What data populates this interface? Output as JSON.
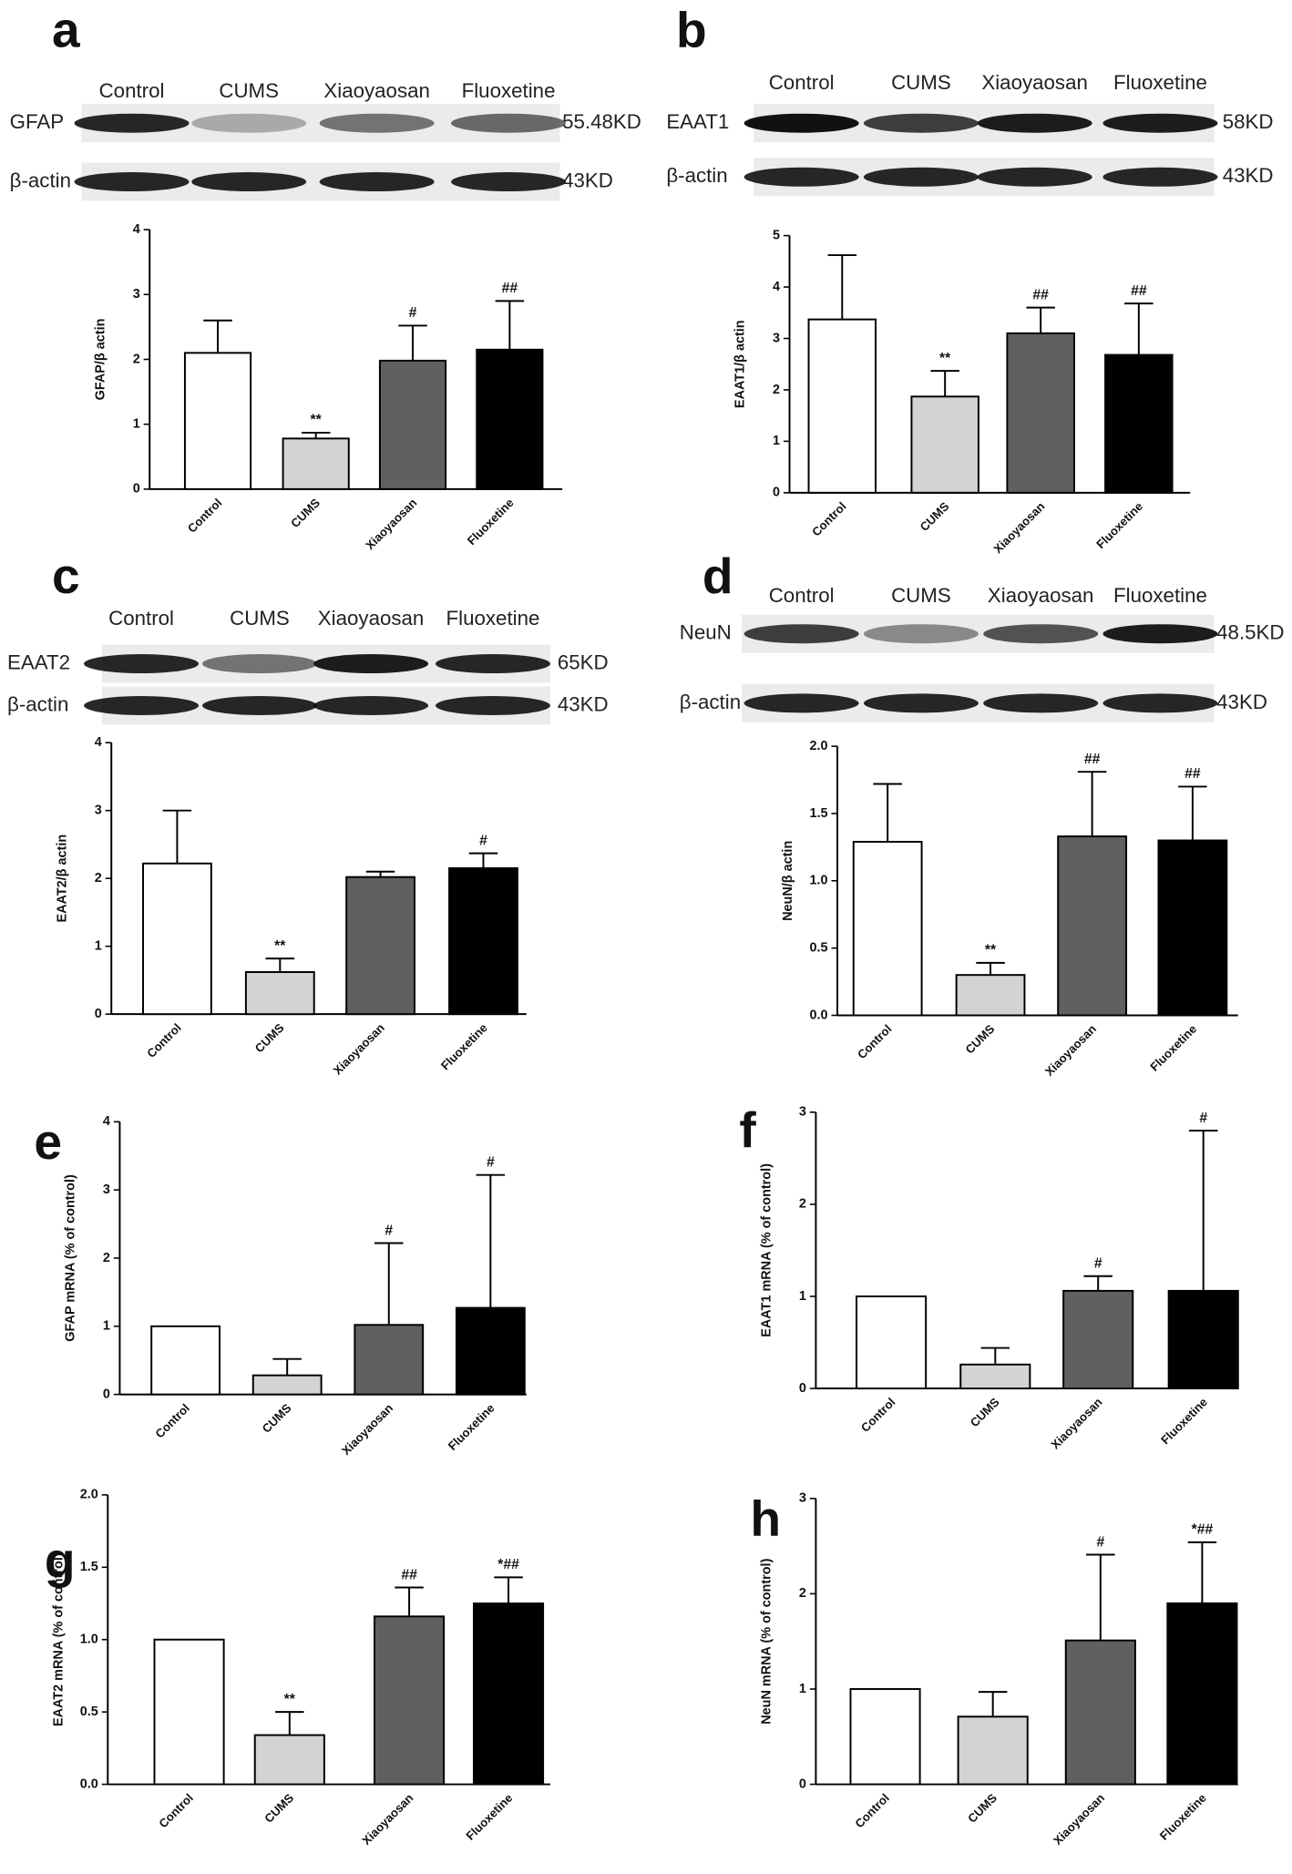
{
  "chart_data": [
    {
      "type": "bar",
      "panel": "a",
      "ylabel": "GFAP/β actin",
      "blot": {
        "lanes": [
          "Control",
          "CUMS",
          "Xiaoyaosan",
          "Fluoxetine"
        ],
        "rows": [
          {
            "name": "GFAP",
            "size": "55.48KD"
          },
          {
            "name": "β-actin",
            "size": "43KD"
          }
        ]
      },
      "categories": [
        "Control",
        "CUMS",
        "Xiaoyaosan",
        "Fluoxetine"
      ],
      "values": [
        2.1,
        0.78,
        1.98,
        2.15
      ],
      "errors": [
        0.5,
        0.09,
        0.54,
        0.75
      ],
      "annotations": [
        null,
        "**",
        "#",
        "##"
      ],
      "colors": [
        "#ffffff",
        "#d3d3d3",
        "#606060",
        "#000000"
      ],
      "ylim": [
        0,
        4
      ],
      "yticks": [
        0,
        1,
        2,
        3,
        4
      ]
    },
    {
      "type": "bar",
      "panel": "b",
      "ylabel": "EAAT1/β actin",
      "blot": {
        "lanes": [
          "Control",
          "CUMS",
          "Xiaoyaosan",
          "Fluoxetine"
        ],
        "rows": [
          {
            "name": "EAAT1",
            "size": "58KD"
          },
          {
            "name": "β-actin",
            "size": "43KD"
          }
        ]
      },
      "categories": [
        "Control",
        "CUMS",
        "Xiaoyaosan",
        "Fluoxetine"
      ],
      "values": [
        3.37,
        1.87,
        3.1,
        2.68
      ],
      "errors": [
        1.25,
        0.5,
        0.5,
        1.0
      ],
      "annotations": [
        null,
        "**",
        "##",
        "##"
      ],
      "colors": [
        "#ffffff",
        "#d3d3d3",
        "#606060",
        "#000000"
      ],
      "ylim": [
        0,
        5
      ],
      "yticks": [
        0,
        1,
        2,
        3,
        4,
        5
      ]
    },
    {
      "type": "bar",
      "panel": "c",
      "ylabel": "EAAT2/β actin",
      "blot": {
        "lanes": [
          "Control",
          "CUMS",
          "Xiaoyaosan",
          "Fluoxetine"
        ],
        "rows": [
          {
            "name": "EAAT2",
            "size": "65KD"
          },
          {
            "name": "β-actin",
            "size": "43KD"
          }
        ]
      },
      "categories": [
        "Control",
        "CUMS",
        "Xiaoyaosan",
        "Fluoxetine"
      ],
      "values": [
        2.22,
        0.62,
        2.02,
        2.15
      ],
      "errors": [
        0.78,
        0.2,
        0.08,
        0.22
      ],
      "annotations": [
        null,
        "**",
        null,
        "#"
      ],
      "colors": [
        "#ffffff",
        "#d3d3d3",
        "#606060",
        "#000000"
      ],
      "ylim": [
        0,
        4
      ],
      "yticks": [
        0,
        1,
        2,
        3,
        4
      ]
    },
    {
      "type": "bar",
      "panel": "d",
      "ylabel": "NeuN/β actin",
      "blot": {
        "lanes": [
          "Control",
          "CUMS",
          "Xiaoyaosan",
          "Fluoxetine"
        ],
        "rows": [
          {
            "name": "NeuN",
            "size": "48.5KD"
          },
          {
            "name": "β-actin",
            "size": "43KD"
          }
        ]
      },
      "categories": [
        "Control",
        "CUMS",
        "Xiaoyaosan",
        "Fluoxetine"
      ],
      "values": [
        1.29,
        0.3,
        1.33,
        1.3
      ],
      "errors": [
        0.43,
        0.09,
        0.48,
        0.4
      ],
      "annotations": [
        null,
        "**",
        "##",
        "##"
      ],
      "colors": [
        "#ffffff",
        "#d3d3d3",
        "#606060",
        "#000000"
      ],
      "ylim": [
        0,
        2
      ],
      "yticks": [
        {
          "value": 0,
          "label": "0.0"
        },
        {
          "value": 0.5,
          "label": "0.5"
        },
        {
          "value": 1,
          "label": "1.0"
        },
        {
          "value": 1.5,
          "label": "1.5"
        },
        {
          "value": 2,
          "label": "2.0"
        }
      ]
    },
    {
      "type": "bar",
      "panel": "e",
      "ylabel": "GFAP mRNA (% of control)",
      "categories": [
        "Control",
        "CUMS",
        "Xiaoyaosan",
        "Fluoxetine"
      ],
      "values": [
        1.0,
        0.28,
        1.02,
        1.27
      ],
      "errors": [
        null,
        0.24,
        1.2,
        1.95
      ],
      "annotations": [
        null,
        null,
        "#",
        "#"
      ],
      "colors": [
        "#ffffff",
        "#d3d3d3",
        "#606060",
        "#000000"
      ],
      "ylim": [
        0,
        4
      ],
      "yticks": [
        0,
        1,
        2,
        3,
        4
      ]
    },
    {
      "type": "bar",
      "panel": "f",
      "ylabel": "EAAT1 mRNA (% of control)",
      "categories": [
        "Control",
        "CUMS",
        "Xiaoyaosan",
        "Fluoxetine"
      ],
      "values": [
        1.0,
        0.26,
        1.06,
        1.06
      ],
      "errors": [
        null,
        0.18,
        0.16,
        1.74
      ],
      "annotations": [
        null,
        null,
        "#",
        "#"
      ],
      "colors": [
        "#ffffff",
        "#d3d3d3",
        "#606060",
        "#000000"
      ],
      "ylim": [
        0,
        3
      ],
      "yticks": [
        0,
        1,
        2,
        3
      ]
    },
    {
      "type": "bar",
      "panel": "g",
      "ylabel": "EAAT2 mRNA (% of control)",
      "categories": [
        "Control",
        "CUMS",
        "Xiaoyaosan",
        "Fluoxetine"
      ],
      "values": [
        1.0,
        0.34,
        1.16,
        1.25
      ],
      "errors": [
        null,
        0.16,
        0.2,
        0.18
      ],
      "annotations": [
        null,
        "**",
        "##",
        "*##"
      ],
      "colors": [
        "#ffffff",
        "#d3d3d3",
        "#606060",
        "#000000"
      ],
      "ylim": [
        0,
        2
      ],
      "yticks": [
        {
          "value": 0,
          "label": "0.0"
        },
        {
          "value": 0.5,
          "label": "0.5"
        },
        {
          "value": 1,
          "label": "1.0"
        },
        {
          "value": 1.5,
          "label": "1.5"
        },
        {
          "value": 2,
          "label": "2.0"
        }
      ]
    },
    {
      "type": "bar",
      "panel": "h",
      "ylabel": "NeuN mRNA (% of control)",
      "categories": [
        "Control",
        "CUMS",
        "Xiaoyaosan",
        "Fluoxetine"
      ],
      "values": [
        1.0,
        0.71,
        1.51,
        1.9
      ],
      "errors": [
        null,
        0.26,
        0.9,
        0.64
      ],
      "annotations": [
        null,
        null,
        "#",
        "*##"
      ],
      "colors": [
        "#ffffff",
        "#d3d3d3",
        "#606060",
        "#000000"
      ],
      "ylim": [
        0,
        3
      ],
      "yticks": [
        0,
        1,
        2,
        3
      ]
    }
  ]
}
